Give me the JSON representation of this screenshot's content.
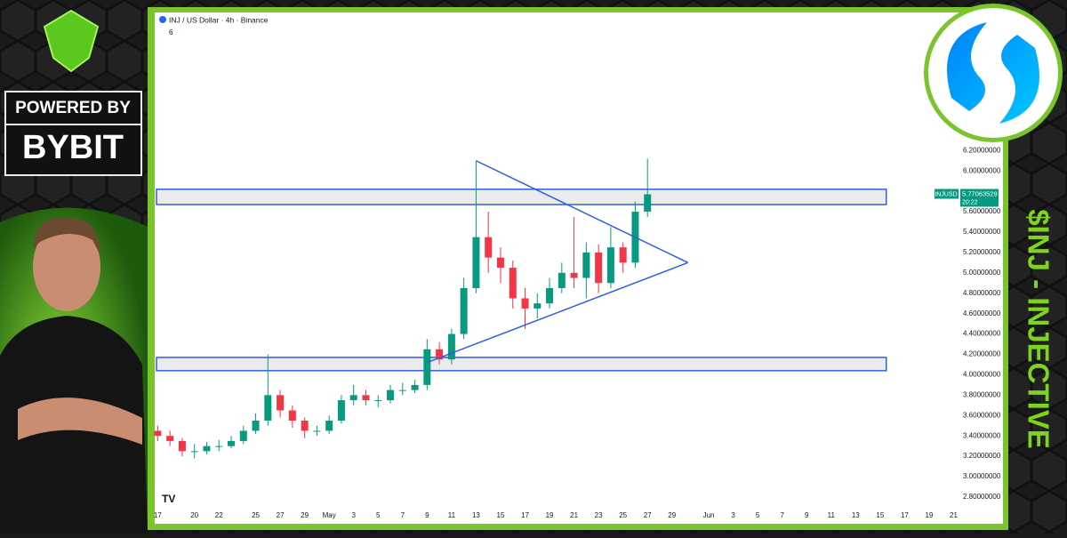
{
  "chart_data": {
    "type": "candlestick",
    "title": "INJ / US Dollar · 4h · Binance",
    "indicator_count": "6",
    "symbol_label": "INJUSD",
    "countdown": "20:22",
    "up_color": "#089981",
    "down_color": "#f23645",
    "x": [
      -14,
      -13,
      -12,
      -11,
      -10,
      -9,
      -8,
      -7,
      -6,
      -5,
      -4,
      -3,
      -2,
      -1,
      0,
      1,
      2,
      3,
      4,
      5,
      6,
      7,
      8,
      9,
      10,
      11,
      12,
      13,
      14,
      15,
      16,
      17,
      18,
      19,
      20,
      21,
      22,
      23,
      24,
      25,
      26
    ],
    "open": [
      3.45,
      3.4,
      3.35,
      3.25,
      3.25,
      3.3,
      3.3,
      3.35,
      3.45,
      3.55,
      3.8,
      3.65,
      3.55,
      3.45,
      3.45,
      3.55,
      3.75,
      3.8,
      3.75,
      3.75,
      3.85,
      3.85,
      3.9,
      4.25,
      4.15,
      4.4,
      4.85,
      5.35,
      5.15,
      5.05,
      4.75,
      4.65,
      4.7,
      4.85,
      5.0,
      4.95,
      5.2,
      4.9,
      5.25,
      5.1,
      5.6
    ],
    "high": [
      3.5,
      3.45,
      3.38,
      3.32,
      3.34,
      3.36,
      3.4,
      3.5,
      3.62,
      4.2,
      3.85,
      3.7,
      3.58,
      3.5,
      3.6,
      3.8,
      3.9,
      3.85,
      3.8,
      3.9,
      3.92,
      3.95,
      4.35,
      4.32,
      4.45,
      4.95,
      6.1,
      5.6,
      5.25,
      5.12,
      4.85,
      4.8,
      4.95,
      5.1,
      5.55,
      5.3,
      5.28,
      5.45,
      5.3,
      5.7,
      6.12
    ],
    "low": [
      3.35,
      3.3,
      3.2,
      3.18,
      3.22,
      3.25,
      3.28,
      3.32,
      3.42,
      3.5,
      3.58,
      3.48,
      3.38,
      3.4,
      3.42,
      3.52,
      3.7,
      3.7,
      3.68,
      3.72,
      3.8,
      3.82,
      3.85,
      4.1,
      4.1,
      4.35,
      4.8,
      5.0,
      4.9,
      4.65,
      4.45,
      4.55,
      4.65,
      4.8,
      4.85,
      4.75,
      4.8,
      4.85,
      5.0,
      5.05,
      5.55
    ],
    "close": [
      3.4,
      3.35,
      3.25,
      3.25,
      3.3,
      3.3,
      3.35,
      3.45,
      3.55,
      3.8,
      3.65,
      3.55,
      3.45,
      3.45,
      3.55,
      3.75,
      3.8,
      3.75,
      3.75,
      3.85,
      3.85,
      3.9,
      4.25,
      4.15,
      4.4,
      4.85,
      5.35,
      5.15,
      5.05,
      4.75,
      4.65,
      4.7,
      4.85,
      5.0,
      4.95,
      5.2,
      4.9,
      5.25,
      5.1,
      5.6,
      5.77063529
    ],
    "xlim": [
      -14.1,
      51.4
    ],
    "xticks": [
      {
        "value": -14,
        "label": "17"
      },
      {
        "value": -11,
        "label": "20"
      },
      {
        "value": -9,
        "label": "22"
      },
      {
        "value": -6,
        "label": "25"
      },
      {
        "value": -4,
        "label": "27"
      },
      {
        "value": -2,
        "label": "29"
      },
      {
        "value": 0,
        "label": "May"
      },
      {
        "value": 2,
        "label": "3"
      },
      {
        "value": 4,
        "label": "5"
      },
      {
        "value": 6,
        "label": "7"
      },
      {
        "value": 8,
        "label": "9"
      },
      {
        "value": 10,
        "label": "11"
      },
      {
        "value": 12,
        "label": "13"
      },
      {
        "value": 14,
        "label": "15"
      },
      {
        "value": 16,
        "label": "17"
      },
      {
        "value": 18,
        "label": "19"
      },
      {
        "value": 20,
        "label": "21"
      },
      {
        "value": 22,
        "label": "23"
      },
      {
        "value": 24,
        "label": "25"
      },
      {
        "value": 26,
        "label": "27"
      },
      {
        "value": 28,
        "label": "29"
      },
      {
        "value": 31,
        "label": "Jun"
      },
      {
        "value": 33,
        "label": "3"
      },
      {
        "value": 35,
        "label": "5"
      },
      {
        "value": 37,
        "label": "7"
      },
      {
        "value": 39,
        "label": "9"
      },
      {
        "value": 41,
        "label": "11"
      },
      {
        "value": 43,
        "label": "13"
      },
      {
        "value": 45,
        "label": "15"
      },
      {
        "value": 47,
        "label": "17"
      },
      {
        "value": 49,
        "label": "19"
      },
      {
        "value": 51,
        "label": "21"
      }
    ],
    "ylim": [
      2.66,
      7.52
    ],
    "yticks": [
      {
        "value": 2.8,
        "label": "2.80000000"
      },
      {
        "value": 3.0,
        "label": "3.00000000"
      },
      {
        "value": 3.2,
        "label": "3.20000000"
      },
      {
        "value": 3.4,
        "label": "3.40000000"
      },
      {
        "value": 3.6,
        "label": "3.60000000"
      },
      {
        "value": 3.8,
        "label": "3.80000000"
      },
      {
        "value": 4.0,
        "label": "4.00000000"
      },
      {
        "value": 4.2,
        "label": "4.20000000"
      },
      {
        "value": 4.4,
        "label": "4.40000000"
      },
      {
        "value": 4.6,
        "label": "4.60000000"
      },
      {
        "value": 4.8,
        "label": "4.80000000"
      },
      {
        "value": 5.0,
        "label": "5.00000000"
      },
      {
        "value": 5.2,
        "label": "5.20000000"
      },
      {
        "value": 5.4,
        "label": "5.40000000"
      },
      {
        "value": 5.6,
        "label": "5.60000000"
      },
      {
        "value": 6.0,
        "label": "6.00000000"
      },
      {
        "value": 6.2,
        "label": "6.20000000"
      }
    ],
    "zones": [
      {
        "low": 5.67,
        "high": 5.82,
        "end": 45.5
      },
      {
        "low": 4.04,
        "high": 4.17,
        "end": 45.5
      }
    ],
    "trend_lines": [
      {
        "x": [
          12,
          29.3
        ],
        "y": [
          6.1,
          5.1
        ]
      },
      {
        "x": [
          8,
          29.3
        ],
        "y": [
          4.12,
          5.1
        ]
      }
    ],
    "line_color": "#2f5fe0"
  },
  "branding": {
    "powered_by": "POWERED BY",
    "sponsor": "BYBIT",
    "side_title": "$INJ - INJECTIVE"
  }
}
